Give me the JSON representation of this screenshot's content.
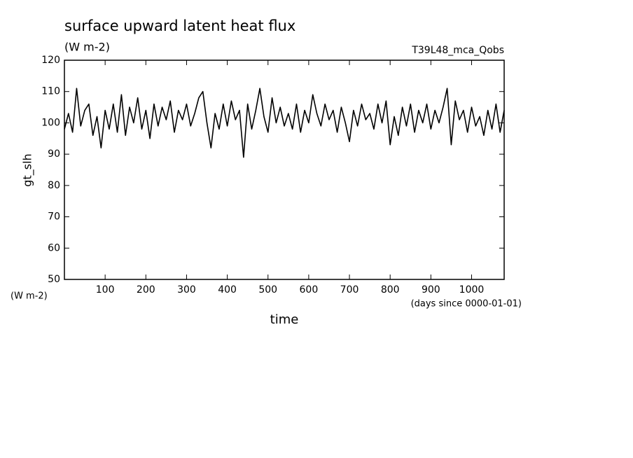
{
  "chart_data": {
    "type": "line",
    "title": "surface upward latent heat flux",
    "subtitle": "(W m-2)",
    "annotation": "T39L48_mca_Qobs",
    "y_label": "gt_slh",
    "y_units": "(W m-2)",
    "x_label": "time",
    "x_units": "(days since 0000-01-01)",
    "x": [
      0,
      10,
      20,
      30,
      40,
      50,
      60,
      70,
      80,
      90,
      100,
      110,
      120,
      130,
      140,
      150,
      160,
      170,
      180,
      190,
      200,
      210,
      220,
      230,
      240,
      250,
      260,
      270,
      280,
      290,
      300,
      310,
      320,
      330,
      340,
      350,
      360,
      370,
      380,
      390,
      400,
      410,
      420,
      430,
      440,
      450,
      460,
      470,
      480,
      490,
      500,
      510,
      520,
      530,
      540,
      550,
      560,
      570,
      580,
      590,
      600,
      610,
      620,
      630,
      640,
      650,
      660,
      670,
      680,
      690,
      700,
      710,
      720,
      730,
      740,
      750,
      760,
      770,
      780,
      790,
      800,
      810,
      820,
      830,
      840,
      850,
      860,
      870,
      880,
      890,
      900,
      910,
      920,
      930,
      940,
      950,
      960,
      970,
      980,
      990,
      1000,
      1010,
      1020,
      1030,
      1040,
      1050,
      1060,
      1070,
      1080
    ],
    "series": [
      {
        "name": "gt_slh",
        "color": "#000000",
        "values": [
          98,
          103,
          97,
          111,
          99,
          104,
          106,
          96,
          102,
          92,
          104,
          98,
          106,
          97,
          109,
          96,
          105,
          100,
          108,
          98,
          104,
          95,
          106,
          99,
          105,
          101,
          107,
          97,
          104,
          101,
          106,
          99,
          103,
          108,
          110,
          100,
          92,
          103,
          98,
          106,
          99,
          107,
          101,
          104,
          89,
          106,
          98,
          104,
          111,
          102,
          97,
          108,
          100,
          105,
          99,
          103,
          98,
          106,
          97,
          104,
          100,
          109,
          103,
          99,
          106,
          101,
          104,
          97,
          105,
          100,
          94,
          104,
          99,
          106,
          101,
          103,
          98,
          106,
          100,
          107,
          93,
          102,
          96,
          105,
          99,
          106,
          97,
          104,
          100,
          106,
          98,
          104,
          100,
          105,
          111,
          93,
          107,
          101,
          104,
          97,
          105,
          99,
          102,
          96,
          104,
          98,
          106,
          97,
          104
        ]
      }
    ],
    "xlim": [
      0,
      1080
    ],
    "ylim": [
      50,
      120
    ],
    "xticks": [
      100,
      200,
      300,
      400,
      500,
      600,
      700,
      800,
      900,
      1000
    ],
    "yticks": [
      50,
      60,
      70,
      80,
      90,
      100,
      110,
      120
    ]
  }
}
